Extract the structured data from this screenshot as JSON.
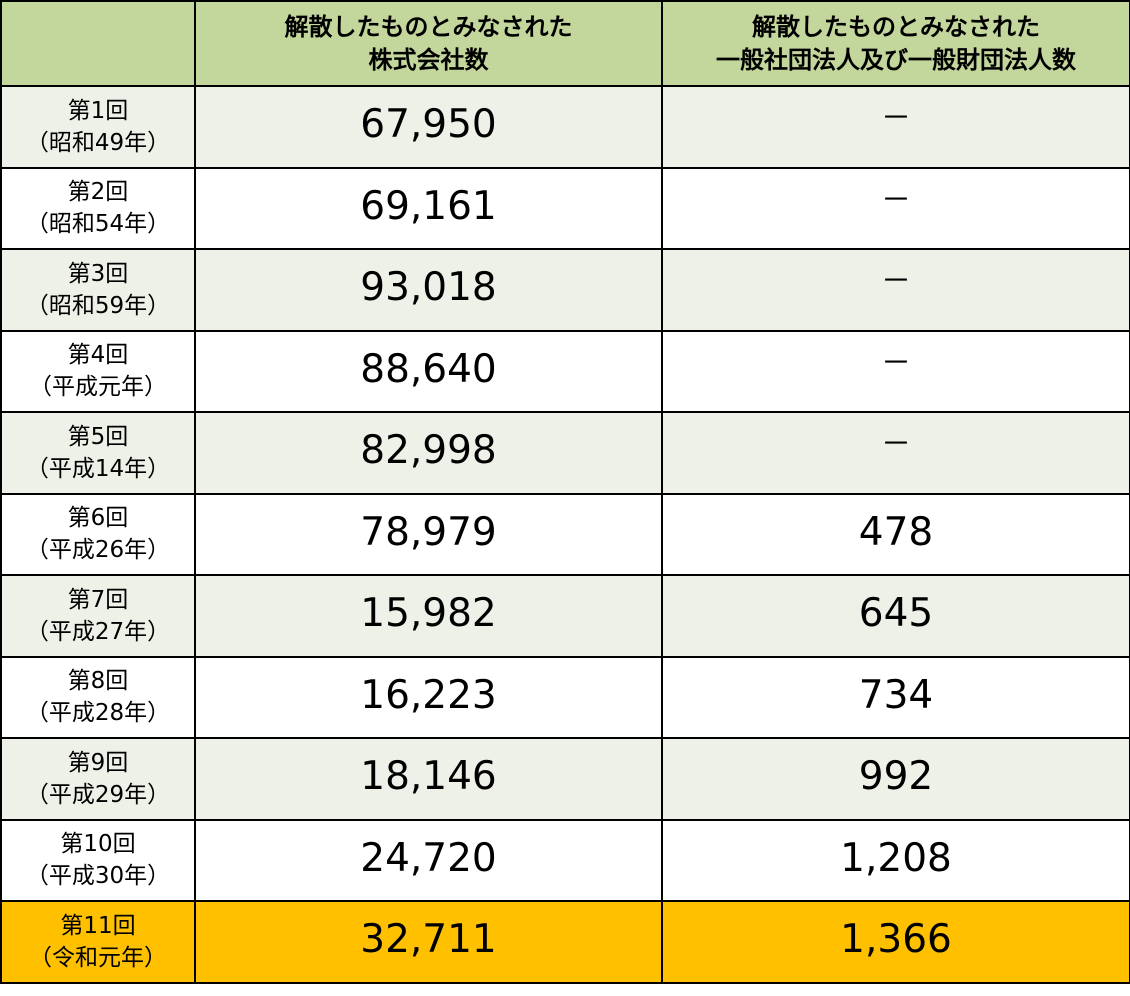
{
  "header": {
    "corner": "",
    "col_companies": [
      "解散したものとみなされた",
      "株式会社数"
    ],
    "col_associations": [
      "解散したものとみなされた",
      "一般社団法人及び一般財団法人数"
    ]
  },
  "colors": {
    "header_bg": "#c3d69b",
    "alt_row_bg": "#eef1e8",
    "highlight_bg": "#ffc000"
  },
  "rows": [
    {
      "round": "第1回",
      "era": "（昭和49年）",
      "companies": "67,950",
      "associations": "－",
      "style": "alt"
    },
    {
      "round": "第2回",
      "era": "（昭和54年）",
      "companies": "69,161",
      "associations": "－",
      "style": "plain"
    },
    {
      "round": "第3回",
      "era": "（昭和59年）",
      "companies": "93,018",
      "associations": "－",
      "style": "alt"
    },
    {
      "round": "第4回",
      "era": "（平成元年）",
      "companies": "88,640",
      "associations": "－",
      "style": "plain"
    },
    {
      "round": "第5回",
      "era": "（平成14年）",
      "companies": "82,998",
      "associations": "－",
      "style": "alt"
    },
    {
      "round": "第6回",
      "era": "（平成26年）",
      "companies": "78,979",
      "associations": "478",
      "style": "plain"
    },
    {
      "round": "第7回",
      "era": "（平成27年）",
      "companies": "15,982",
      "associations": "645",
      "style": "alt"
    },
    {
      "round": "第8回",
      "era": "（平成28年）",
      "companies": "16,223",
      "associations": "734",
      "style": "plain"
    },
    {
      "round": "第9回",
      "era": "（平成29年）",
      "companies": "18,146",
      "associations": "992",
      "style": "alt"
    },
    {
      "round": "第10回",
      "era": "（平成30年）",
      "companies": "24,720",
      "associations": "1,208",
      "style": "plain"
    },
    {
      "round": "第11回",
      "era": "（令和元年）",
      "companies": "32,711",
      "associations": "1,366",
      "style": "hl"
    }
  ]
}
